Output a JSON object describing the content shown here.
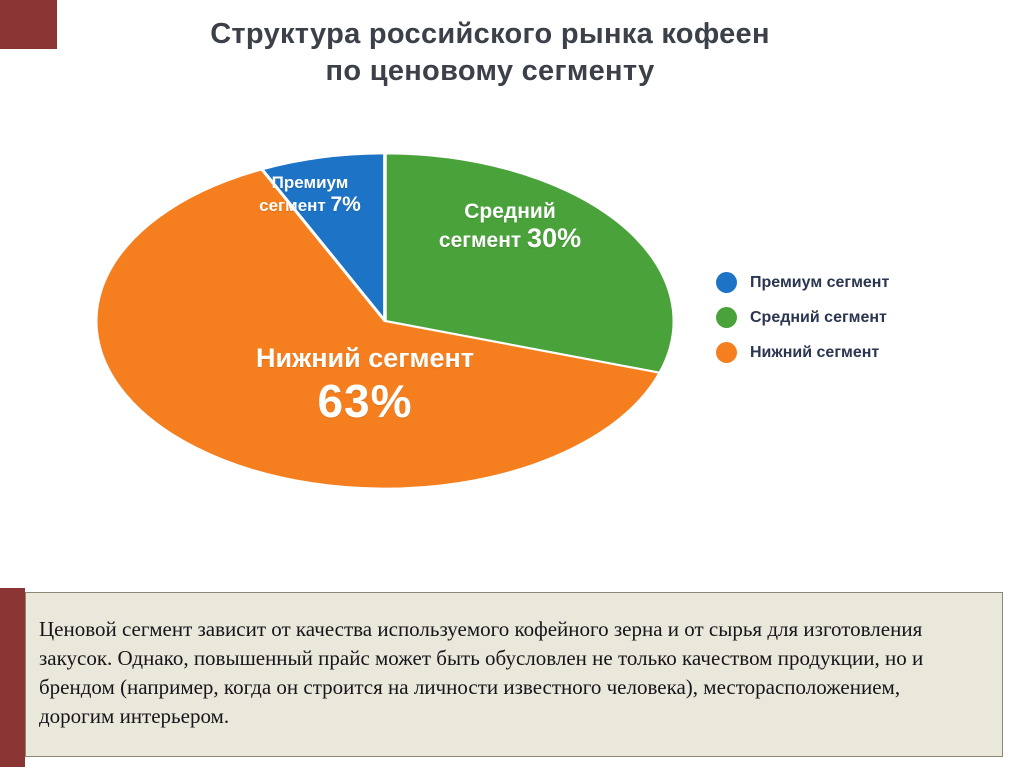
{
  "title": {
    "line1": "Структура российского рынка кофеен",
    "line2": "по ценовому сегменту"
  },
  "chart_data": {
    "type": "pie",
    "title": "Структура российского рынка кофеен по ценовому сегменту",
    "units": "percent",
    "legend_position": "right",
    "start_at_fraction": -0.07,
    "slices": [
      {
        "label": "Премиум сегмент",
        "value": 7,
        "pct_text": "7%",
        "inside_line1": "Премиум",
        "inside_line2": "сегмент",
        "color": "#1d74c6"
      },
      {
        "label": "Средний сегмент",
        "value": 30,
        "pct_text": "30%",
        "inside_line1": "Средний",
        "inside_line2": "сегмент",
        "color": "#4aa23a"
      },
      {
        "label": "Нижний сегмент",
        "value": 63,
        "pct_text": "63%",
        "inside_line1": "Нижний сегмент",
        "inside_line2": "",
        "color": "#f57f1f"
      }
    ]
  },
  "note": {
    "text": "Ценовой сегмент зависит от качества используемого кофейного зерна и от сырья для изготовления закусок. Однако, повышенный прайс может быть обусловлен не только качеством продукции, но и брендом (например, когда он строится на личности известного человека), месторасположением, дорогим интерьером."
  },
  "colors": {
    "accent_bar": "#8a3434",
    "note_background": "#eae7db",
    "note_border": "#8c8672",
    "title_text": "#3b4049",
    "legend_text": "#2a3550",
    "pie_label_text": "#ffffff"
  }
}
